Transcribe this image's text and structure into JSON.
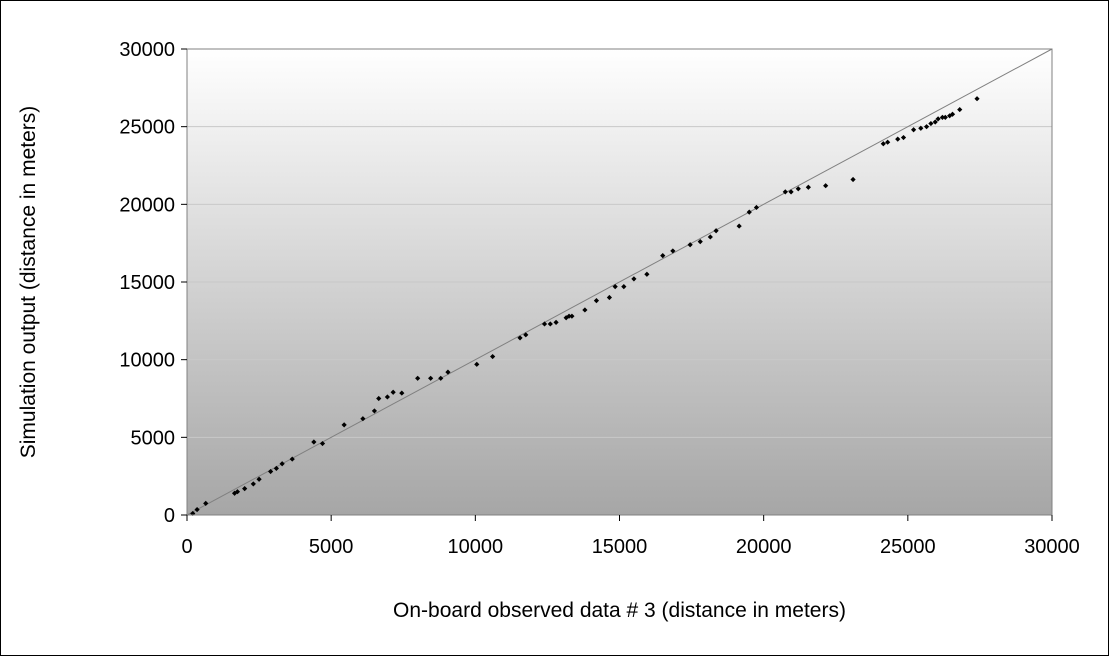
{
  "chart_data": {
    "type": "scatter",
    "xlabel": "On-board observed data # 3 (distance in meters)",
    "ylabel": "Simulation output (distance in meters)",
    "xlim": [
      0,
      30000
    ],
    "ylim": [
      0,
      30000
    ],
    "x_ticks": [
      "0",
      "5000",
      "10000",
      "15000",
      "20000",
      "25000",
      "30000"
    ],
    "y_ticks": [
      "0",
      "5000",
      "10000",
      "15000",
      "20000",
      "25000",
      "30000"
    ],
    "grid": "horizontal",
    "legend": "none",
    "reference_line": [
      [
        0,
        0
      ],
      [
        30000,
        30000
      ]
    ],
    "colors": {
      "points": "#000000",
      "reference_line": "#808080",
      "plot_bg_top": "#ffffff",
      "plot_bg_bottom": "#a6a6a6",
      "grid": "#c8c8c8"
    },
    "points": [
      [
        200,
        100
      ],
      [
        350,
        350
      ],
      [
        650,
        750
      ],
      [
        1650,
        1400
      ],
      [
        1750,
        1500
      ],
      [
        2000,
        1700
      ],
      [
        2300,
        2000
      ],
      [
        2500,
        2300
      ],
      [
        2900,
        2800
      ],
      [
        3100,
        3000
      ],
      [
        3300,
        3300
      ],
      [
        3650,
        3600
      ],
      [
        4400,
        4700
      ],
      [
        4700,
        4600
      ],
      [
        5450,
        5800
      ],
      [
        6100,
        6200
      ],
      [
        6500,
        6700
      ],
      [
        6650,
        7500
      ],
      [
        6950,
        7600
      ],
      [
        7150,
        7900
      ],
      [
        7450,
        7850
      ],
      [
        8000,
        8800
      ],
      [
        8450,
        8800
      ],
      [
        8800,
        8800
      ],
      [
        9050,
        9200
      ],
      [
        10050,
        9700
      ],
      [
        10600,
        10200
      ],
      [
        11550,
        11400
      ],
      [
        11750,
        11600
      ],
      [
        12400,
        12300
      ],
      [
        12600,
        12300
      ],
      [
        12800,
        12400
      ],
      [
        13150,
        12700
      ],
      [
        13250,
        12800
      ],
      [
        13350,
        12800
      ],
      [
        13800,
        13200
      ],
      [
        14200,
        13800
      ],
      [
        14650,
        14000
      ],
      [
        14850,
        14700
      ],
      [
        15150,
        14700
      ],
      [
        15500,
        15200
      ],
      [
        15950,
        15500
      ],
      [
        16500,
        16700
      ],
      [
        16850,
        17000
      ],
      [
        17450,
        17400
      ],
      [
        17800,
        17600
      ],
      [
        18150,
        17900
      ],
      [
        18350,
        18300
      ],
      [
        19150,
        18600
      ],
      [
        19500,
        19500
      ],
      [
        19750,
        19800
      ],
      [
        20750,
        20800
      ],
      [
        20950,
        20800
      ],
      [
        21200,
        21000
      ],
      [
        21550,
        21100
      ],
      [
        22150,
        21200
      ],
      [
        23100,
        21600
      ],
      [
        24150,
        23900
      ],
      [
        24300,
        24000
      ],
      [
        24650,
        24200
      ],
      [
        24850,
        24300
      ],
      [
        25200,
        24800
      ],
      [
        25450,
        24900
      ],
      [
        25650,
        25000
      ],
      [
        25800,
        25200
      ],
      [
        25950,
        25300
      ],
      [
        26050,
        25500
      ],
      [
        26200,
        25600
      ],
      [
        26300,
        25600
      ],
      [
        26450,
        25700
      ],
      [
        26550,
        25800
      ],
      [
        26800,
        26100
      ],
      [
        27400,
        26800
      ]
    ]
  }
}
